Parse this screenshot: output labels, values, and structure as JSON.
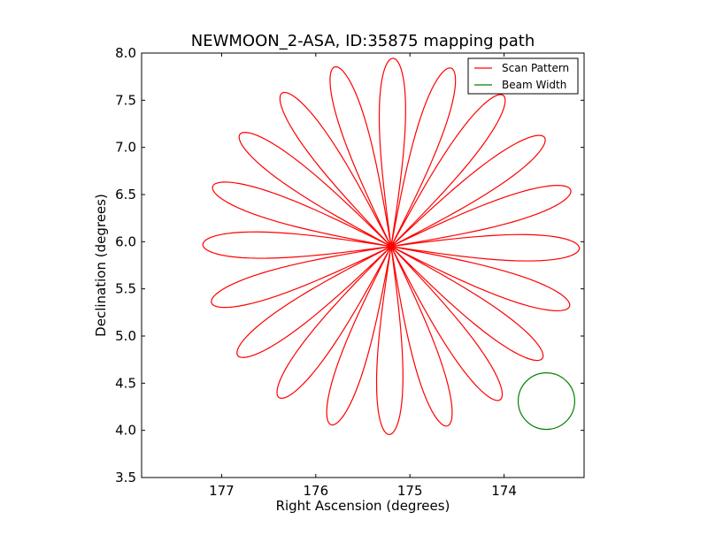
{
  "chart_data": {
    "type": "line",
    "title": "NEWMOON_2-ASA, ID:35875 mapping path",
    "xlabel": "Right Ascension (degrees)",
    "ylabel": "Declination (degrees)",
    "xlim": [
      177.85,
      173.15
    ],
    "ylim": [
      3.5,
      8.0
    ],
    "x_inverted": true,
    "xticks": [
      177,
      176,
      175,
      174
    ],
    "xtick_labels": [
      "177",
      "176",
      "175",
      "174"
    ],
    "yticks": [
      3.5,
      4.0,
      4.5,
      5.0,
      5.5,
      6.0,
      6.5,
      7.0,
      7.5,
      8.0
    ],
    "ytick_labels": [
      "3.5",
      "4.0",
      "4.5",
      "5.0",
      "5.5",
      "6.0",
      "6.5",
      "7.0",
      "7.5",
      "8.0"
    ],
    "grid": false,
    "legend_position": "top-right",
    "series": [
      {
        "name": "Scan Pattern",
        "color": "#ff0000",
        "shape": "rose",
        "center": [
          175.2,
          5.95
        ],
        "petals": 20,
        "petal_length_deg": 2.0,
        "petal_half_width_deg": 0.14,
        "start": [
          177.2,
          5.97
        ]
      },
      {
        "name": "Beam Width",
        "color": "#008000",
        "shape": "circle",
        "center": [
          173.55,
          4.31
        ],
        "radius_deg": 0.3
      }
    ]
  }
}
